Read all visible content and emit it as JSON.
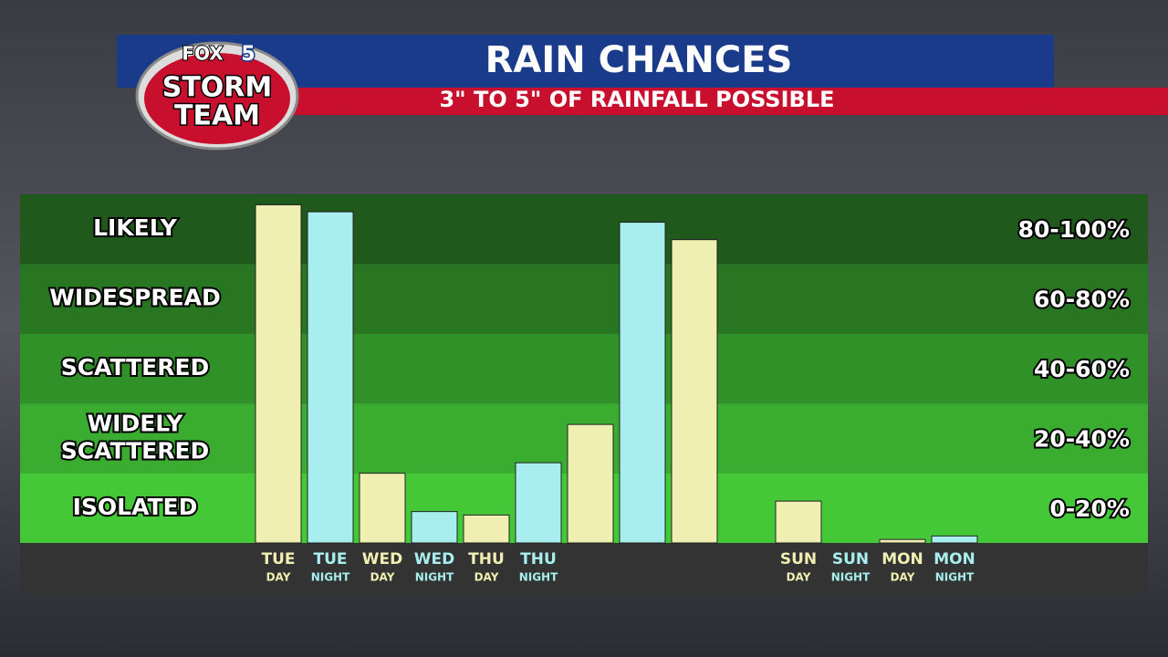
{
  "logo": {
    "brand": "FOX",
    "channel": "5",
    "line1": "STORM",
    "line2": "TEAM"
  },
  "chart_data": {
    "type": "bar",
    "title": "RAIN CHANCES",
    "subtitle": "3\" TO 5\" OF RAINFALL POSSIBLE",
    "categories": [
      "TUE",
      "TUE",
      "WED",
      "WED",
      "THU",
      "THU",
      null,
      null,
      null,
      null,
      "SUN",
      "SUN",
      "MON",
      "MON"
    ],
    "subcategories": [
      "DAY",
      "NIGHT",
      "DAY",
      "NIGHT",
      "DAY",
      "NIGHT",
      null,
      null,
      null,
      null,
      "DAY",
      "NIGHT",
      "DAY",
      "NIGHT"
    ],
    "values": [
      97,
      95,
      20,
      9,
      8,
      23,
      34,
      92,
      87,
      null,
      12,
      0,
      1,
      2
    ],
    "colors": [
      "#f0efb2",
      "#a9eeee",
      "#f0efb2",
      "#a9eeee",
      "#f0efb2",
      "#a9eeee",
      "#f0efb2",
      "#a9eeee",
      "#f0efb2",
      "#a9eeee",
      "#f0efb2",
      "#a9eeee",
      "#f0efb2",
      "#a9eeee"
    ],
    "ylim": [
      0,
      100
    ],
    "bands": [
      {
        "label": "LIKELY",
        "range": "80-100%",
        "from": 80,
        "to": 100,
        "color": "#1f5a1c"
      },
      {
        "label": "WIDESPREAD",
        "range": "60-80%",
        "from": 60,
        "to": 80,
        "color": "#287622"
      },
      {
        "label": "SCATTERED",
        "range": "40-60%",
        "from": 40,
        "to": 60,
        "color": "#319129"
      },
      {
        "label": "WIDELY SCATTERED",
        "range": "20-40%",
        "from": 20,
        "to": 40,
        "color": "#3aac30"
      },
      {
        "label": "ISOLATED",
        "range": "0-20%",
        "from": 0,
        "to": 20,
        "color": "#45c838"
      }
    ]
  }
}
